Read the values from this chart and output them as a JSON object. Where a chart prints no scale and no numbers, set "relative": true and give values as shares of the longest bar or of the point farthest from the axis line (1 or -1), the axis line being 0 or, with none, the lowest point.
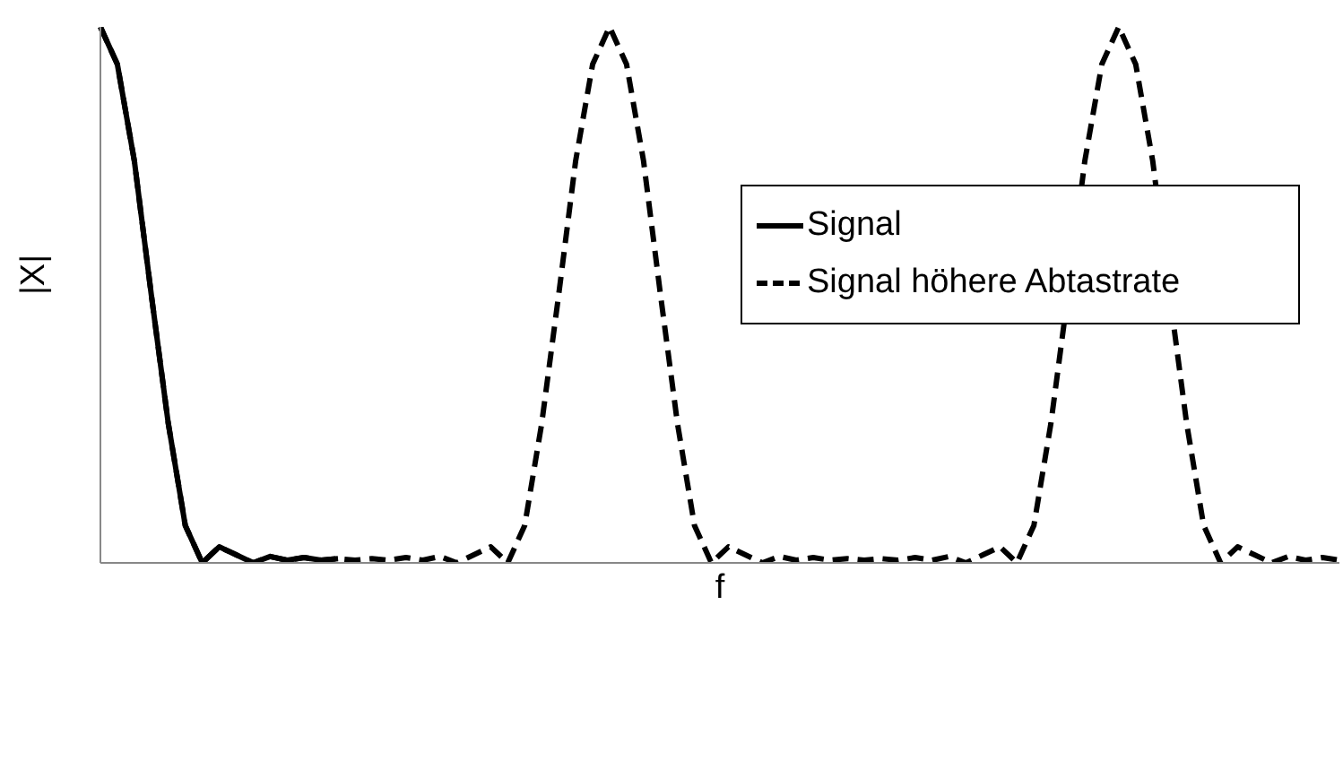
{
  "chart_data": {
    "type": "line",
    "relative": true,
    "xlabel": "f",
    "ylabel": "|X|",
    "legend": "top right",
    "categories": [
      null,
      null,
      null,
      null,
      null,
      null,
      null,
      null,
      null,
      null,
      null,
      null,
      null,
      null,
      null,
      null,
      null,
      null,
      null,
      null,
      null,
      null,
      null,
      null,
      null,
      null,
      null,
      null,
      null,
      null,
      null,
      null,
      null,
      null,
      null,
      null,
      null,
      null,
      null,
      null,
      null,
      null,
      null,
      null,
      null,
      null,
      null,
      null,
      null,
      null,
      null,
      null,
      null,
      null,
      null,
      null,
      null,
      null,
      null,
      null,
      null,
      null,
      null,
      null,
      null,
      null,
      null,
      null,
      null,
      null,
      null,
      null,
      null,
      null
    ],
    "series": [
      {
        "name": "Signal",
        "color": "#000000",
        "line_style": "solid",
        "values": [
          1,
          0.93,
          0.75,
          0.5,
          0.26,
          0.07,
          0,
          0.03,
          0.015,
          0,
          0.012,
          0.005,
          0.01,
          0.005,
          0.008,
          null,
          null,
          null,
          null,
          null,
          null,
          null,
          null,
          null,
          null,
          null,
          null,
          null,
          null,
          null,
          null,
          null,
          null,
          null,
          null,
          null,
          null,
          null,
          null,
          null,
          null,
          null,
          null,
          null,
          null,
          null,
          null,
          null,
          null,
          null,
          null,
          null,
          null,
          null,
          null,
          null,
          null,
          null,
          null,
          null,
          null,
          null,
          null,
          null,
          null,
          null,
          null,
          null,
          null,
          null,
          null,
          null,
          null,
          null
        ]
      },
      {
        "name": "Signal höhere Abtastrate",
        "color": "#000000",
        "line_style": "dashed",
        "values": [
          1,
          0.93,
          0.75,
          0.5,
          0.26,
          0.07,
          0,
          0.03,
          0.015,
          0,
          0.012,
          0.005,
          0.01,
          0.005,
          0.008,
          0.005,
          0.008,
          0.005,
          0.01,
          0.005,
          0.012,
          0,
          0.015,
          0.03,
          0,
          0.07,
          0.26,
          0.5,
          0.75,
          0.93,
          1,
          0.93,
          0.75,
          0.5,
          0.26,
          0.07,
          0,
          0.03,
          0.015,
          0,
          0.012,
          0.005,
          0.01,
          0.005,
          0.008,
          0.005,
          0.008,
          0.005,
          0.01,
          0.005,
          0.012,
          0,
          0.015,
          0.03,
          0,
          0.07,
          0.26,
          0.5,
          0.75,
          0.93,
          1,
          0.93,
          0.75,
          0.5,
          0.26,
          0.07,
          0,
          0.03,
          0.015,
          0,
          0.012,
          0.005,
          0.01,
          0.005
        ]
      }
    ]
  }
}
